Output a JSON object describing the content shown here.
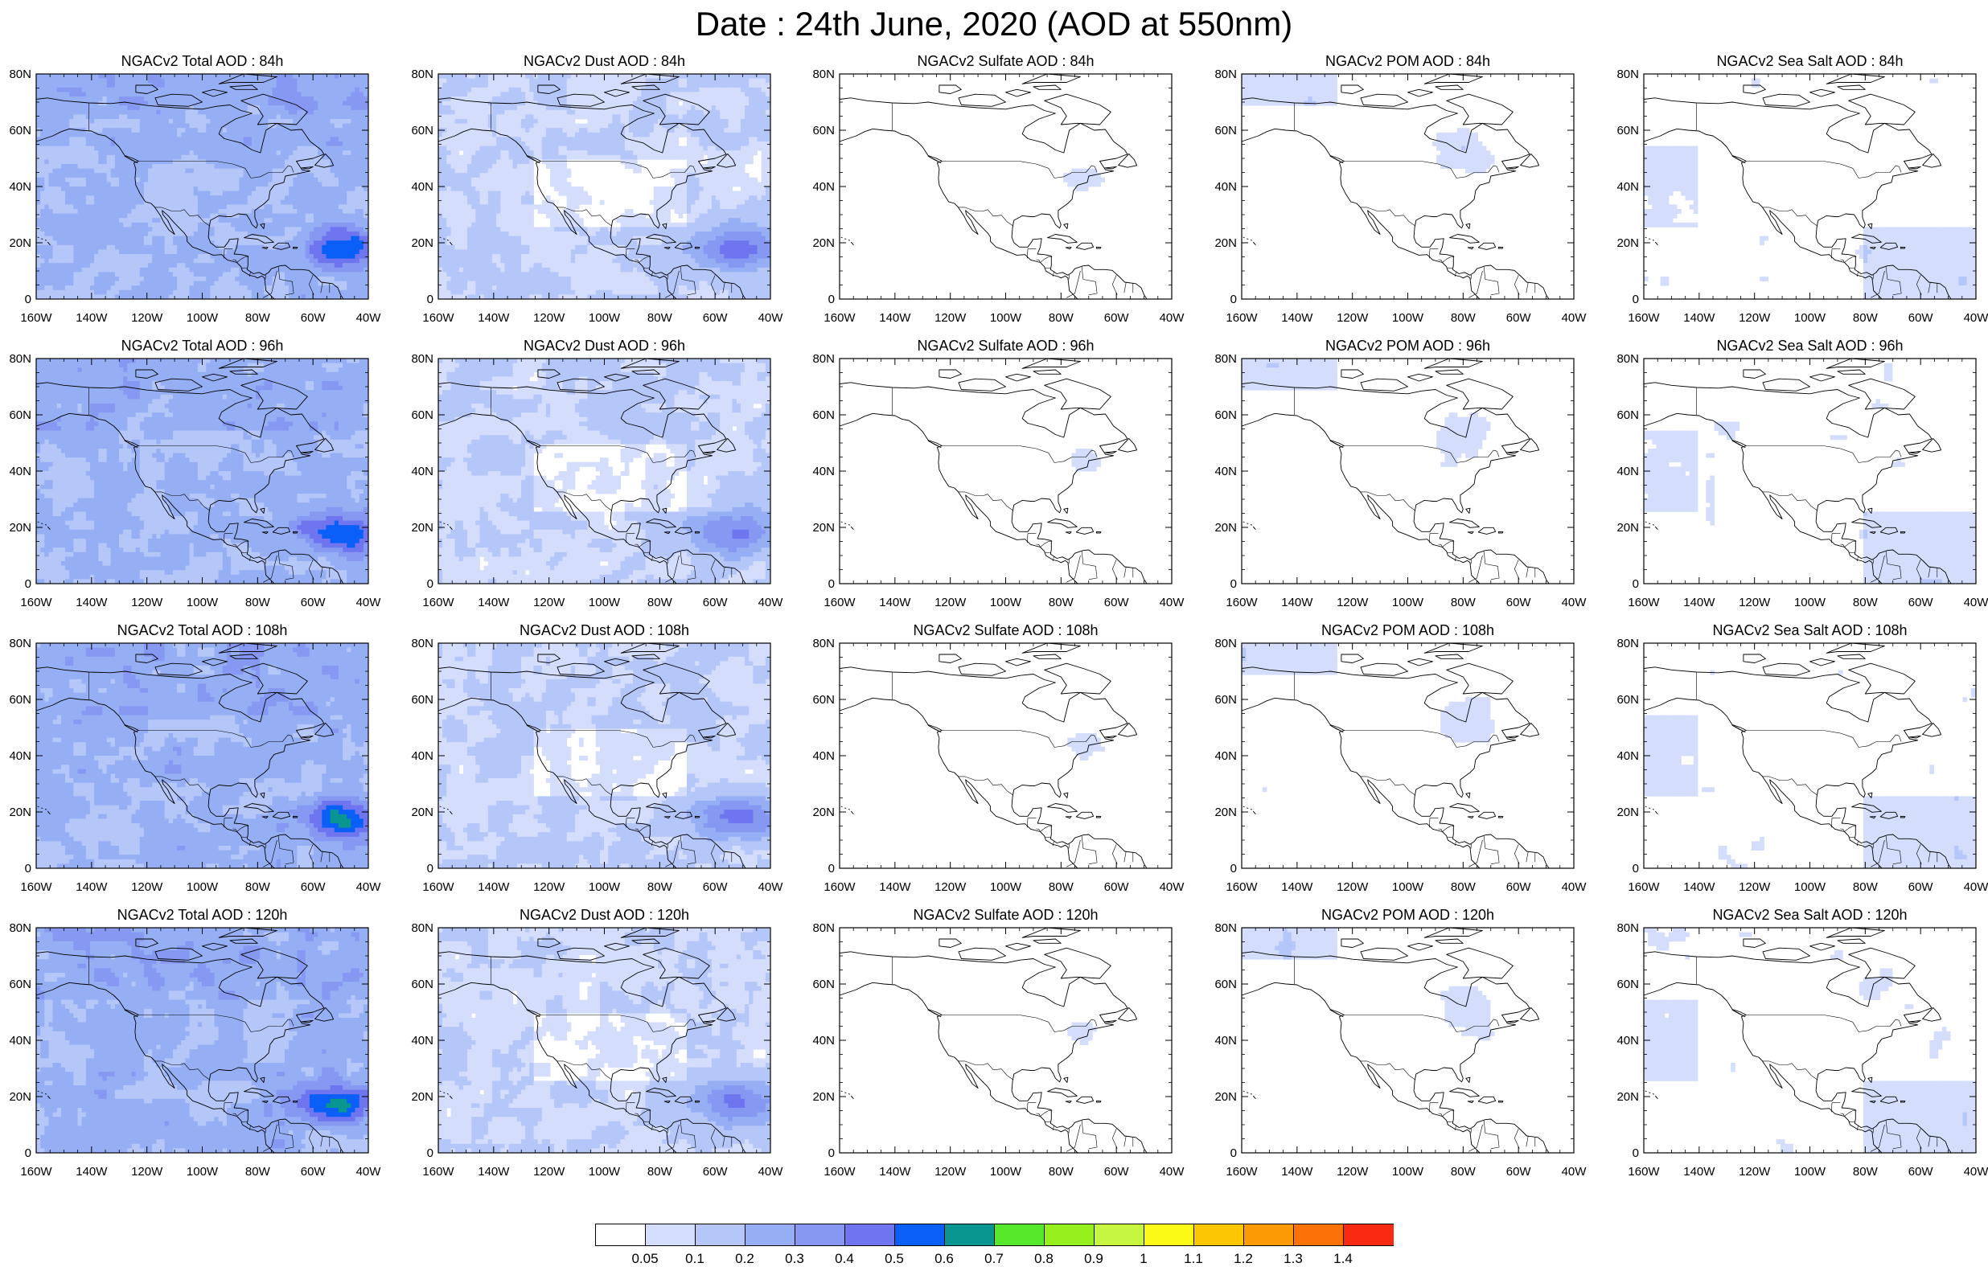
{
  "title": "Date : 24th June, 2020 (AOD at 550nm)",
  "axes": {
    "lon_ticks": [
      "160W",
      "140W",
      "120W",
      "100W",
      "80W",
      "60W",
      "40W"
    ],
    "lat_ticks": [
      "80N",
      "60N",
      "40N",
      "20N",
      "0"
    ]
  },
  "columns": [
    "total",
    "dust",
    "sulfate",
    "pom",
    "seasalt"
  ],
  "rows": [
    "84h",
    "96h",
    "108h",
    "120h"
  ],
  "panels": [
    [
      {
        "id": "total-84",
        "title": "NGACv2 Total AOD : 84h",
        "species": "total",
        "intensity": 0.55
      },
      {
        "id": "dust-84",
        "title": "NGACv2 Dust AOD : 84h",
        "species": "dust",
        "intensity": 0.5
      },
      {
        "id": "sulfate-84",
        "title": "NGACv2 Sulfate AOD : 84h",
        "species": "sulfate",
        "intensity": 0.1
      },
      {
        "id": "pom-84",
        "title": "NGACv2 POM AOD : 84h",
        "species": "pom",
        "intensity": 0.25
      },
      {
        "id": "seasalt-84",
        "title": "NGACv2 Sea Salt AOD : 84h",
        "species": "seasalt",
        "intensity": 0.25
      }
    ],
    [
      {
        "id": "total-96",
        "title": "NGACv2 Total AOD : 96h",
        "species": "total",
        "intensity": 0.55
      },
      {
        "id": "dust-96",
        "title": "NGACv2 Dust AOD : 96h",
        "species": "dust",
        "intensity": 0.5
      },
      {
        "id": "sulfate-96",
        "title": "NGACv2 Sulfate AOD : 96h",
        "species": "sulfate",
        "intensity": 0.1
      },
      {
        "id": "pom-96",
        "title": "NGACv2 POM AOD : 96h",
        "species": "pom",
        "intensity": 0.25
      },
      {
        "id": "seasalt-96",
        "title": "NGACv2 Sea Salt AOD : 96h",
        "species": "seasalt",
        "intensity": 0.25
      }
    ],
    [
      {
        "id": "total-108",
        "title": "NGACv2 Total AOD : 108h",
        "species": "total",
        "intensity": 0.6
      },
      {
        "id": "dust-108",
        "title": "NGACv2 Dust AOD : 108h",
        "species": "dust",
        "intensity": 0.5
      },
      {
        "id": "sulfate-108",
        "title": "NGACv2 Sulfate AOD : 108h",
        "species": "sulfate",
        "intensity": 0.12
      },
      {
        "id": "pom-108",
        "title": "NGACv2 POM AOD : 108h",
        "species": "pom",
        "intensity": 0.28
      },
      {
        "id": "seasalt-108",
        "title": "NGACv2 Sea Salt AOD : 108h",
        "species": "seasalt",
        "intensity": 0.28
      }
    ],
    [
      {
        "id": "total-120",
        "title": "NGACv2 Total AOD : 120h",
        "species": "total",
        "intensity": 0.6
      },
      {
        "id": "dust-120",
        "title": "NGACv2 Dust AOD : 120h",
        "species": "dust",
        "intensity": 0.45
      },
      {
        "id": "sulfate-120",
        "title": "NGACv2 Sulfate AOD : 120h",
        "species": "sulfate",
        "intensity": 0.12
      },
      {
        "id": "pom-120",
        "title": "NGACv2 POM AOD : 120h",
        "species": "pom",
        "intensity": 0.28
      },
      {
        "id": "seasalt-120",
        "title": "NGACv2 Sea Salt  AOD : 120h",
        "species": "seasalt",
        "intensity": 0.28
      }
    ]
  ],
  "colorbar": {
    "colors": [
      "#ffffff",
      "#d4defc",
      "#b5c6f8",
      "#96aff4",
      "#8698f2",
      "#6e75ee",
      "#0a5ff8",
      "#0a9690",
      "#56e82a",
      "#96f01e",
      "#c6f640",
      "#fafa16",
      "#fcc604",
      "#fb9a04",
      "#fc7206",
      "#fa2a12"
    ],
    "labels": [
      "0.05",
      "0.1",
      "0.2",
      "0.3",
      "0.4",
      "0.5",
      "0.6",
      "0.7",
      "0.8",
      "0.9",
      "1",
      "1.1",
      "1.2",
      "1.3",
      "1.4"
    ]
  }
}
